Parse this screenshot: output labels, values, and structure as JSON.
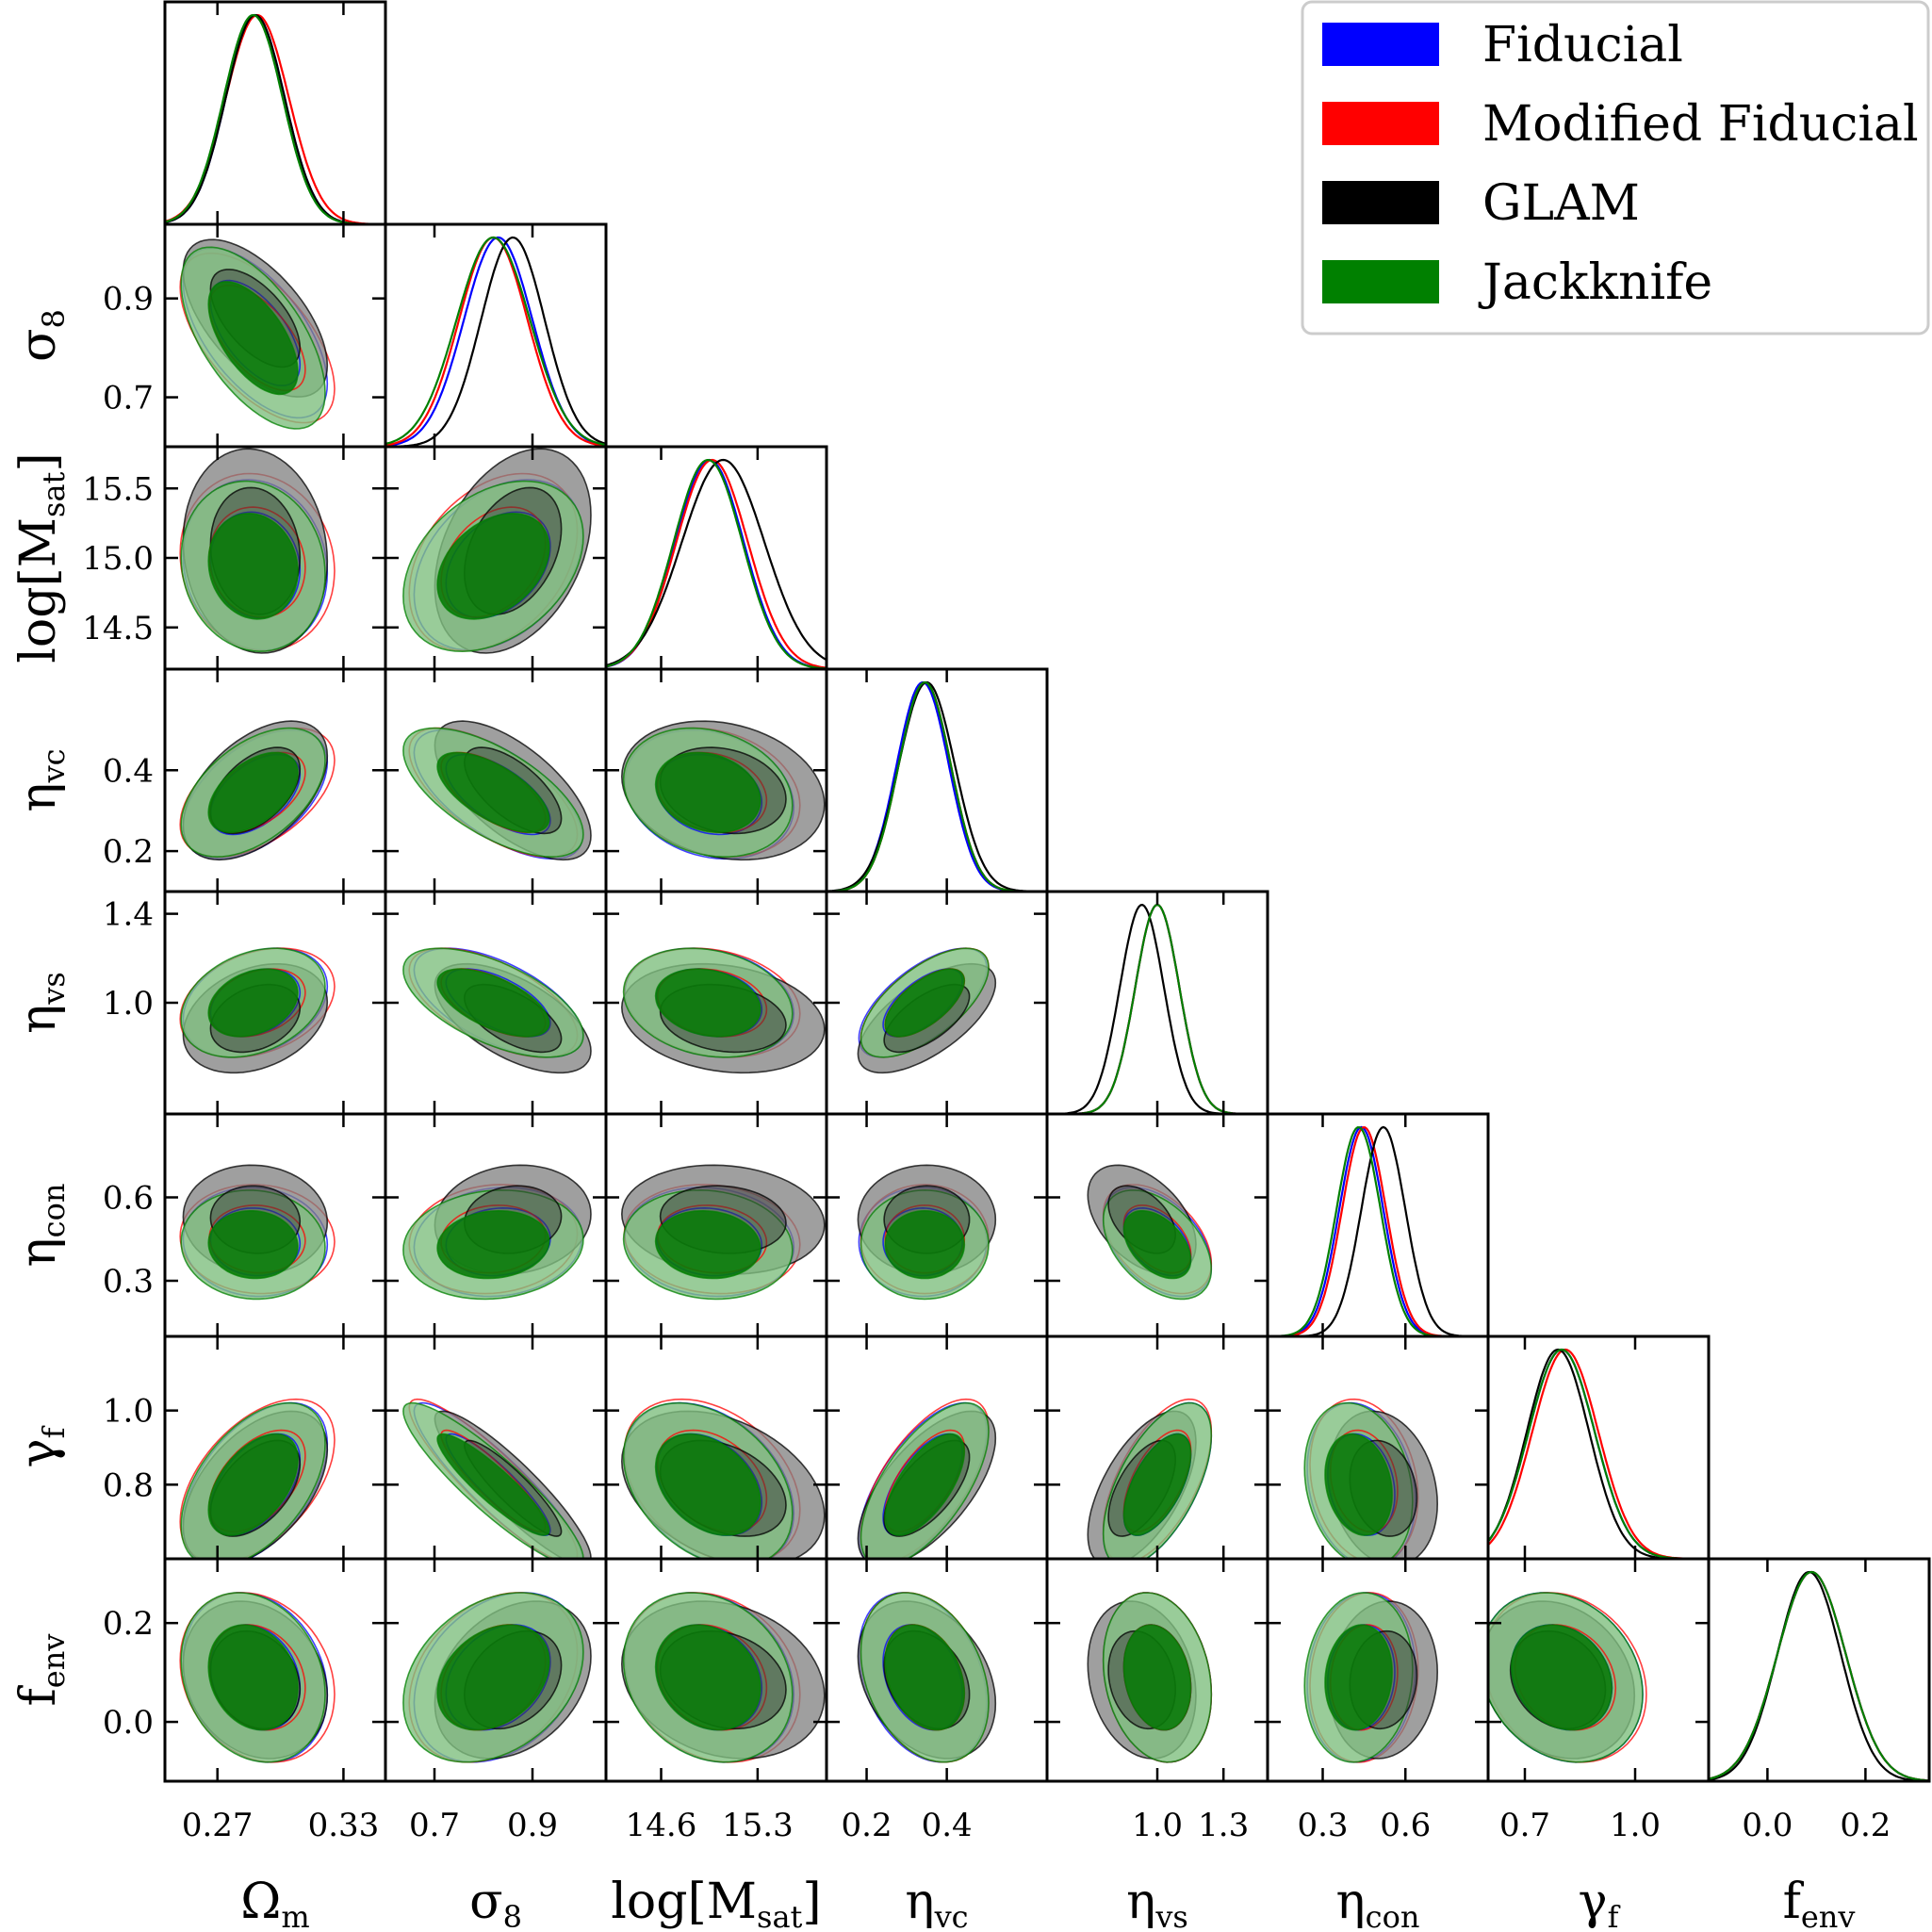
{
  "chart_data": {
    "type": "corner",
    "parameters": [
      {
        "key": "om",
        "label": "Ω",
        "sub": "m",
        "range": [
          0.245,
          0.35
        ],
        "ticks": [
          0.27,
          0.33
        ],
        "tick_labels": [
          "0.27",
          "0.33"
        ]
      },
      {
        "key": "s8",
        "label": "σ",
        "sub": "8",
        "range": [
          0.6,
          1.05
        ],
        "ticks": [
          0.7,
          0.9
        ],
        "tick_labels": [
          "0.7",
          "0.9"
        ]
      },
      {
        "key": "lm",
        "label": "log[M",
        "sub": "sat",
        "suffix": "]",
        "range": [
          14.2,
          15.8
        ],
        "ticks": [
          14.5,
          15.0,
          15.5
        ],
        "tick_labels": [
          "14.5",
          "15.0",
          "15.5"
        ],
        "x_ticks": [
          14.6,
          15.3
        ],
        "x_tick_labels": [
          "14.6",
          "15.3"
        ]
      },
      {
        "key": "vc",
        "label": "η",
        "sub": "vc",
        "range": [
          0.1,
          0.65
        ],
        "ticks": [
          0.2,
          0.4
        ],
        "tick_labels": [
          "0.2",
          "0.4"
        ]
      },
      {
        "key": "vs",
        "label": "η",
        "sub": "vs",
        "range": [
          0.5,
          1.5
        ],
        "ticks": [
          1.0,
          1.4
        ],
        "tick_labels": [
          "1.0",
          "1.4"
        ],
        "x_ticks": [
          1.0,
          1.3
        ],
        "x_tick_labels": [
          "1.0",
          "1.3"
        ]
      },
      {
        "key": "co",
        "label": "η",
        "sub": "con",
        "range": [
          0.1,
          0.9
        ],
        "ticks": [
          0.3,
          0.6
        ],
        "tick_labels": [
          "0.3",
          "0.6"
        ]
      },
      {
        "key": "gf",
        "label": "γ",
        "sub": "f",
        "range": [
          0.6,
          1.2
        ],
        "ticks": [
          0.8,
          1.0
        ],
        "tick_labels": [
          "0.8",
          "1.0"
        ],
        "x_ticks": [
          0.7,
          1.0
        ],
        "x_tick_labels": [
          "0.7",
          "1.0"
        ]
      },
      {
        "key": "fe",
        "label": "f",
        "sub": "env",
        "range": [
          -0.12,
          0.33
        ],
        "ticks": [
          0.0,
          0.2
        ],
        "tick_labels": [
          "0.0",
          "0.2"
        ]
      }
    ],
    "series": [
      {
        "name": "Fiducial",
        "color": "#0000ff",
        "means": [
          0.288,
          0.83,
          14.95,
          0.34,
          1.0,
          0.44,
          0.8,
          0.09
        ],
        "sigmas": [
          0.014,
          0.07,
          0.25,
          0.065,
          0.1,
          0.08,
          0.09,
          0.07
        ]
      },
      {
        "name": "Modified Fiducial",
        "color": "#ff0000",
        "means": [
          0.289,
          0.82,
          14.97,
          0.345,
          1.0,
          0.45,
          0.81,
          0.09
        ],
        "sigmas": [
          0.015,
          0.07,
          0.26,
          0.065,
          0.1,
          0.08,
          0.09,
          0.07
        ]
      },
      {
        "name": "GLAM",
        "color": "#000000",
        "means": [
          0.288,
          0.86,
          15.05,
          0.35,
          0.93,
          0.52,
          0.79,
          0.085
        ],
        "sigmas": [
          0.014,
          0.065,
          0.3,
          0.07,
          0.1,
          0.08,
          0.085,
          0.065
        ]
      },
      {
        "name": "Jackknife",
        "color": "#008000",
        "means": [
          0.287,
          0.82,
          14.94,
          0.345,
          1.0,
          0.43,
          0.8,
          0.09
        ],
        "sigmas": [
          0.014,
          0.075,
          0.25,
          0.065,
          0.1,
          0.08,
          0.09,
          0.07
        ]
      }
    ],
    "correlations": {
      "om-s8": -0.6,
      "om-lm": -0.1,
      "om-vc": 0.5,
      "om-vs": 0.3,
      "om-co": -0.05,
      "om-gf": 0.5,
      "om-fe": -0.2,
      "s8-lm": 0.35,
      "s8-vc": -0.65,
      "s8-vs": -0.6,
      "s8-co": 0.1,
      "s8-gf": -0.9,
      "s8-fe": 0.3,
      "lm-vc": -0.2,
      "lm-vs": -0.2,
      "lm-co": -0.1,
      "lm-gf": -0.35,
      "lm-fe": -0.2,
      "vc-vs": 0.65,
      "vc-co": 0.0,
      "vc-gf": 0.65,
      "vc-fe": -0.3,
      "vs-co": -0.45,
      "vs-gf": 0.6,
      "vs-fe": -0.2,
      "co-gf": -0.2,
      "co-fe": 0.1,
      "gf-fe": -0.2
    },
    "legend_position": "top-right",
    "legend": [
      "Fiducial",
      "Modified Fiducial",
      "GLAM",
      "Jackknife"
    ]
  }
}
